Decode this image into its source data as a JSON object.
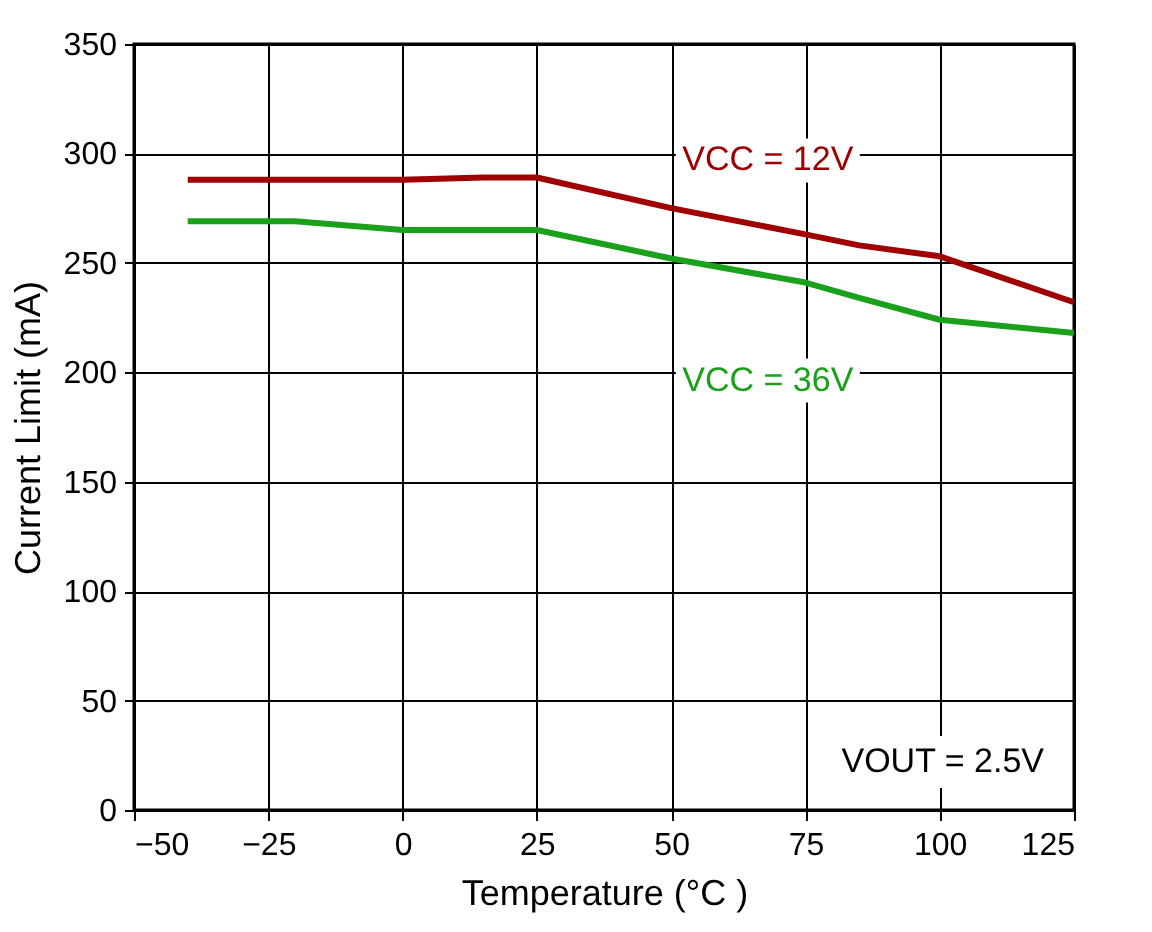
{
  "chart_data": {
    "type": "line",
    "xlabel": "Temperature (°C )",
    "ylabel": "Current Limit (mA)",
    "x": [
      -40,
      -20,
      0,
      15,
      25,
      50,
      75,
      85,
      100,
      125
    ],
    "series": [
      {
        "name": "VCC = 12V",
        "color": "#a00000",
        "values": [
          288,
          288,
          288,
          289,
          289,
          275,
          263,
          258,
          253,
          232
        ]
      },
      {
        "name": "VCC = 36V",
        "color": "#1aa01a",
        "values": [
          269,
          269,
          265,
          265,
          265,
          252,
          241,
          234,
          224,
          218
        ]
      }
    ],
    "annotations": [
      "VOUT = 2.5V"
    ],
    "xlim": [
      -50,
      125
    ],
    "xticks": [
      -50,
      -25,
      0,
      25,
      50,
      75,
      100,
      125
    ],
    "ylim": [
      0,
      350
    ],
    "yticks": [
      0,
      50,
      100,
      150,
      200,
      250,
      300,
      350
    ],
    "grid": true,
    "marker": "none",
    "line_style": "solid"
  }
}
